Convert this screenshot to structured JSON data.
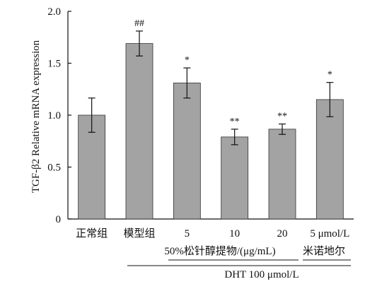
{
  "chart_data": {
    "type": "bar",
    "ylabel": "TGF-β2 Relative mRNA expression",
    "ylim": [
      0,
      2.0
    ],
    "yticks": [
      "0",
      "0.5",
      "1.0",
      "1.5",
      "2.0"
    ],
    "ytick_values": [
      0,
      0.5,
      1.0,
      1.5,
      2.0
    ],
    "categories": [
      "正常组",
      "模型组",
      "5",
      "10",
      "20",
      "5 μmol/L"
    ],
    "values": [
      1.0,
      1.69,
      1.31,
      0.79,
      0.865,
      1.15
    ],
    "errors": [
      0.165,
      0.12,
      0.145,
      0.075,
      0.05,
      0.165
    ],
    "annotations": [
      "",
      "##",
      "*",
      "**",
      "**",
      "*"
    ],
    "group_labels": {
      "extract": "50%松针醇提物/(μg/mL)",
      "positive_control": "米诺地尔",
      "dht": "DHT 100 μmol/L"
    },
    "colors": {
      "bar": "#a3a3a3",
      "bar_edge": "#333333",
      "axis": "#111111"
    }
  }
}
